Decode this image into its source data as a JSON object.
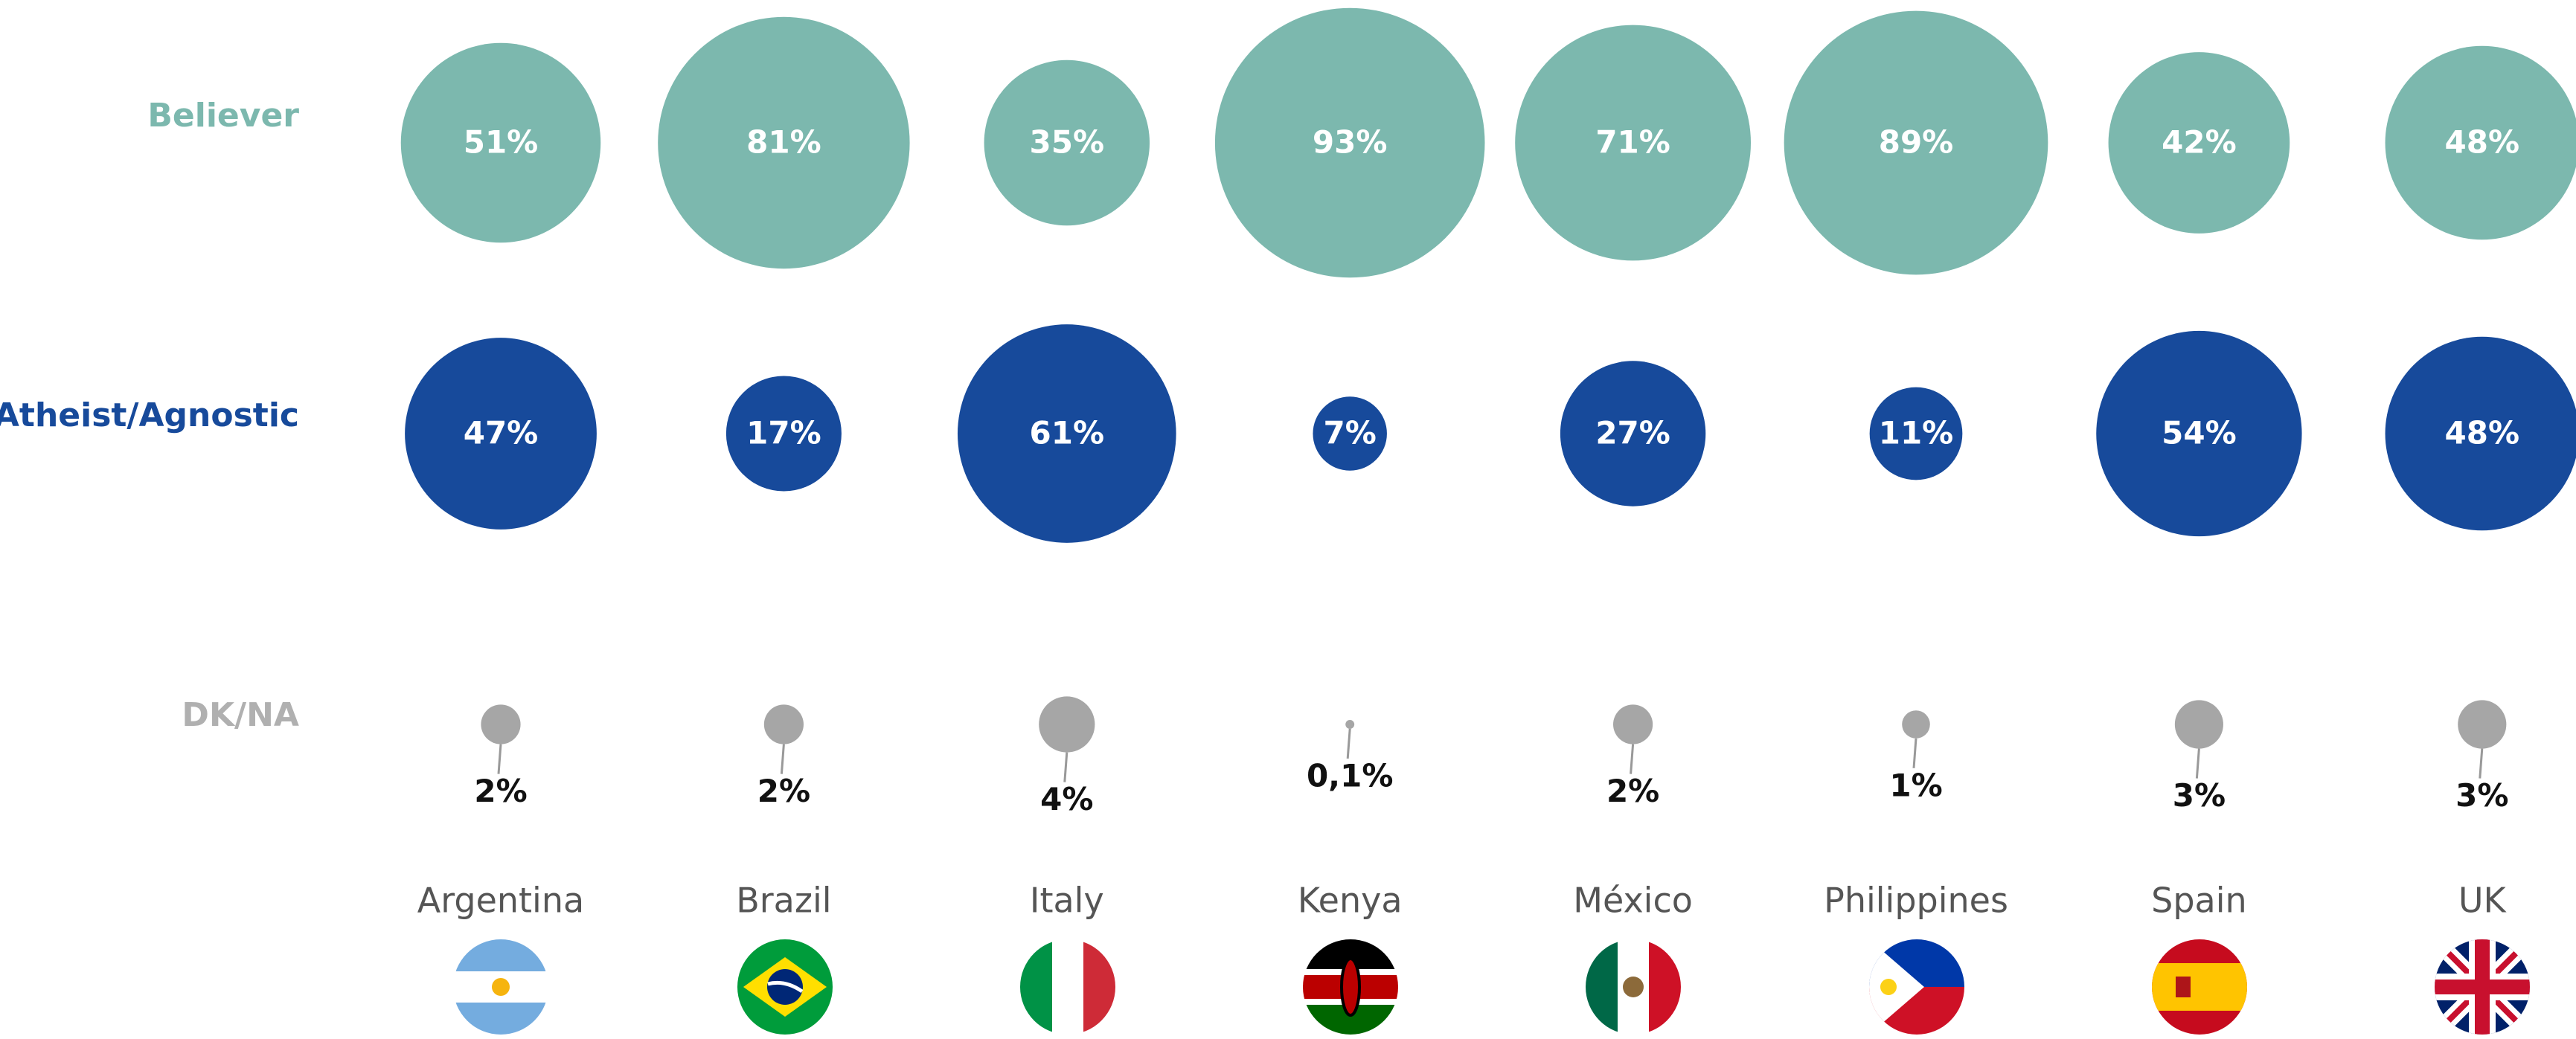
{
  "chart_data": {
    "type": "bubble",
    "categories": [
      "Argentina",
      "Brazil",
      "Italy",
      "Kenya",
      "México",
      "Philippines",
      "Spain",
      "UK"
    ],
    "series": [
      {
        "name": "Believer",
        "color": "#7cb8ae",
        "values": [
          51,
          81,
          35,
          93,
          71,
          89,
          42,
          48
        ],
        "value_labels": [
          "51%",
          "81%",
          "35%",
          "93%",
          "71%",
          "89%",
          "42%",
          "48%"
        ]
      },
      {
        "name": "Atheist/Agnostic",
        "color": "#174a9b",
        "values": [
          47,
          17,
          61,
          7,
          27,
          11,
          54,
          48
        ],
        "value_labels": [
          "47%",
          "17%",
          "61%",
          "7%",
          "27%",
          "11%",
          "54%",
          "48%"
        ]
      },
      {
        "name": "DK/NA",
        "color": "#a6a6a6",
        "values": [
          2,
          2,
          4,
          0.1,
          2,
          1,
          3,
          3
        ],
        "value_labels": [
          "2%",
          "2%",
          "4%",
          "0,1%",
          "2%",
          "1%",
          "3%",
          "3%"
        ]
      }
    ]
  }
}
